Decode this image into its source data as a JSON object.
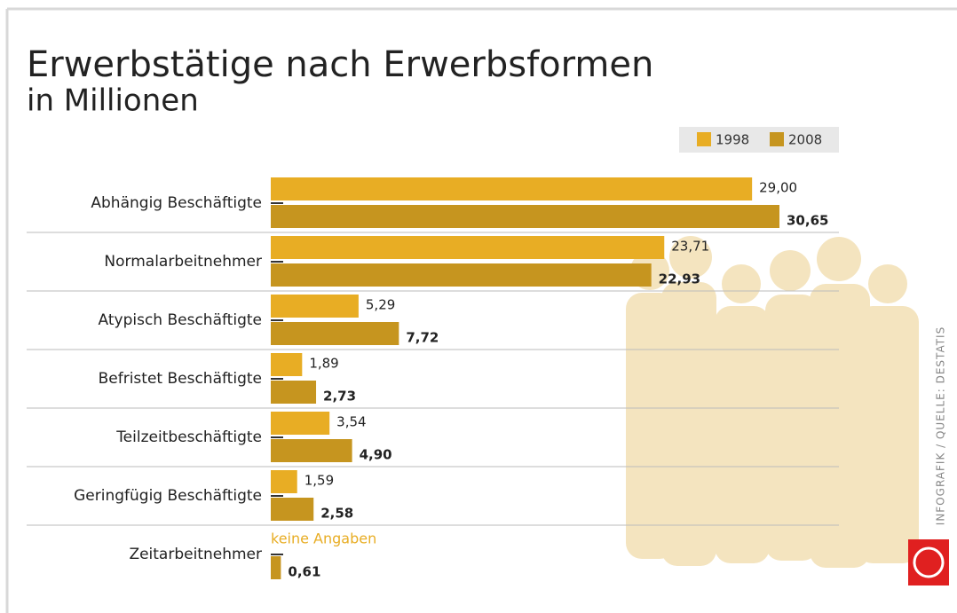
{
  "chart_data": {
    "type": "hbar",
    "title": "Erwerbstätige nach Erwerbsformen",
    "subtitle": "in Millionen",
    "source": "INFOGRAFIK / QUELLE: DESTATIS",
    "categories": [
      "Abhängig Beschäftigte",
      "Normalarbeitnehmer",
      "Atypisch Beschäftigte",
      "Befristet Beschäftigte",
      "Teilzeitbeschäftigte",
      "Geringfügig Beschäftigte",
      "Zeitarbeitnehmer"
    ],
    "series": [
      {
        "name": "1998",
        "color": "#e8ad24",
        "values": [
          29.0,
          23.71,
          5.29,
          1.89,
          3.54,
          1.59,
          null
        ],
        "value_labels": [
          "29,00",
          "23,71",
          "5,29",
          "1,89",
          "3,54",
          "1,59",
          "keine Angaben"
        ]
      },
      {
        "name": "2008",
        "color": "#c6951f",
        "values": [
          30.65,
          22.93,
          7.72,
          2.73,
          4.9,
          2.58,
          0.61
        ],
        "value_labels": [
          "30,65",
          "22,93",
          "7,72",
          "2,73",
          "4,90",
          "2,58",
          "0,61"
        ]
      }
    ]
  }
}
